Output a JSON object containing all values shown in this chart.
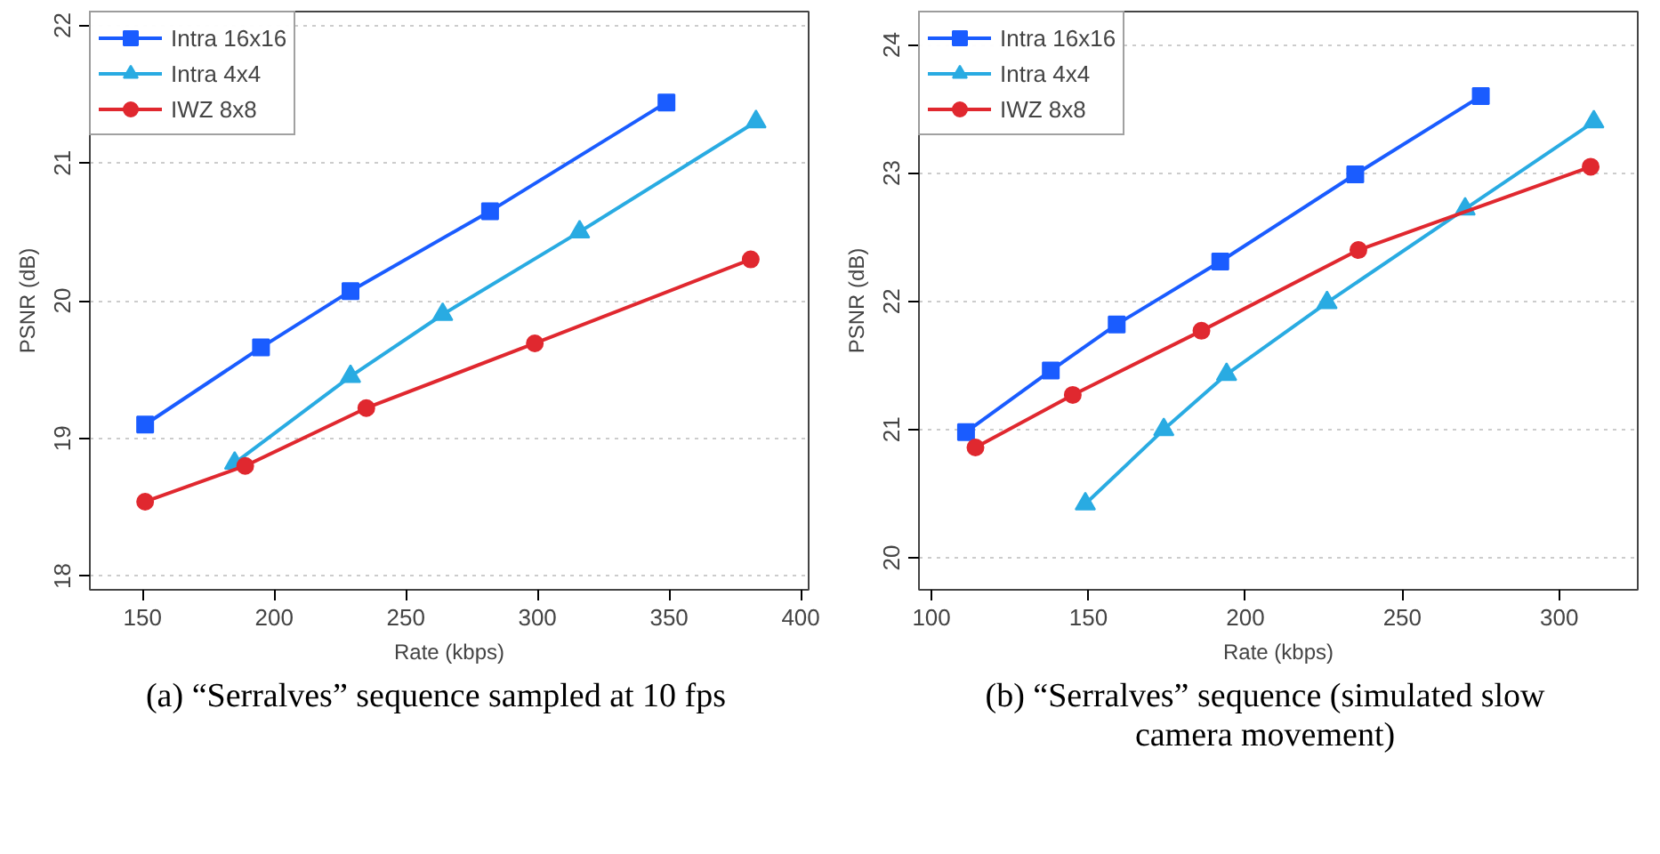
{
  "chart_data": [
    {
      "type": "line",
      "xlabel": "Rate (kbps)",
      "ylabel": "PSNR (dB)",
      "annotations": [
        "(a) “Serralves” sequence sampled at 10 fps"
      ],
      "xlim": [
        130,
        403
      ],
      "ylim": [
        17.9,
        22.1
      ],
      "xticks": [
        150,
        200,
        250,
        300,
        350,
        400
      ],
      "yticks": [
        18,
        19,
        20,
        21,
        22
      ],
      "grid": "y",
      "legend": "top left",
      "series": [
        {
          "name": "Intra 16x16",
          "color": "#1a5cff",
          "marker": "square",
          "x": [
            151,
            195,
            229,
            282,
            349
          ],
          "values": [
            19.1,
            19.66,
            20.07,
            20.65,
            21.44
          ]
        },
        {
          "name": "Intra 4x4",
          "color": "#29abe2",
          "marker": "triangle",
          "x": [
            185,
            229,
            264,
            316,
            383
          ],
          "values": [
            18.82,
            19.45,
            19.9,
            20.5,
            21.3
          ]
        },
        {
          "name": "IWZ 8x8",
          "color": "#e0282f",
          "marker": "circle",
          "x": [
            151,
            189,
            235,
            299,
            381
          ],
          "values": [
            18.54,
            18.8,
            19.22,
            19.69,
            20.3
          ]
        }
      ]
    },
    {
      "type": "line",
      "xlabel": "Rate (kbps)",
      "ylabel": "PSNR (dB)",
      "annotations": [
        "(b) “Serralves” sequence (simulated slow camera movement)"
      ],
      "xlim": [
        96,
        325
      ],
      "ylim": [
        19.75,
        24.26
      ],
      "xticks": [
        100,
        150,
        200,
        250,
        300
      ],
      "yticks": [
        20,
        21,
        22,
        23,
        24
      ],
      "grid": "y",
      "legend": "top left",
      "series": [
        {
          "name": "Intra 16x16",
          "color": "#1a5cff",
          "marker": "square",
          "x": [
            111,
            138,
            159,
            192,
            235,
            275
          ],
          "values": [
            20.98,
            21.46,
            21.82,
            22.31,
            22.99,
            23.6
          ]
        },
        {
          "name": "Intra 4x4",
          "color": "#29abe2",
          "marker": "triangle",
          "x": [
            149,
            174,
            194,
            226,
            270,
            311
          ],
          "values": [
            20.42,
            21.0,
            21.43,
            21.99,
            22.72,
            23.4
          ]
        },
        {
          "name": "IWZ 8x8",
          "color": "#e0282f",
          "marker": "circle",
          "x": [
            114,
            145,
            186,
            236,
            310
          ],
          "values": [
            20.86,
            21.27,
            21.77,
            22.4,
            23.05
          ]
        }
      ]
    }
  ]
}
